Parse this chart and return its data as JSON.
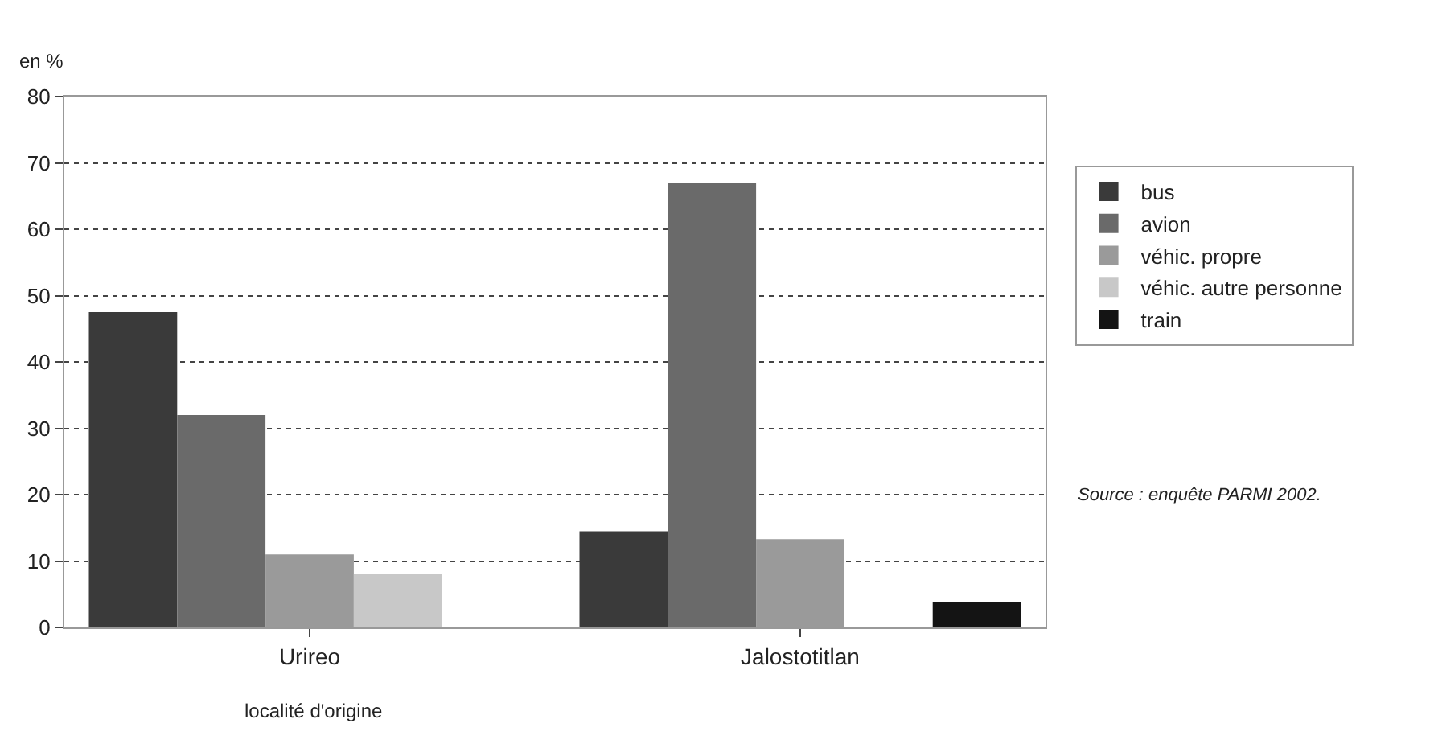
{
  "chart_data": {
    "type": "bar",
    "ylabel": "en %",
    "xlabel": "localité d'origine",
    "categories": [
      "Urireo",
      "Jalostotitlan"
    ],
    "series": [
      {
        "name": "bus",
        "color": "#3a3a3a",
        "values": [
          47.5,
          14.5
        ]
      },
      {
        "name": "avion",
        "color": "#6a6a6a",
        "values": [
          32,
          67
        ]
      },
      {
        "name": "véhic. propre",
        "color": "#9a9a9a",
        "values": [
          11,
          13.3
        ]
      },
      {
        "name": "véhic. autre personne",
        "color": "#c8c8c8",
        "values": [
          8,
          null
        ]
      },
      {
        "name": "train",
        "color": "#141414",
        "values": [
          null,
          3.8
        ]
      }
    ],
    "ylim": [
      0,
      80
    ],
    "yticks": [
      0,
      10,
      20,
      30,
      40,
      50,
      60,
      70,
      80
    ],
    "grid": "y",
    "legend": "right",
    "annotations": [
      "Source : enquête PARMI 2002."
    ]
  }
}
